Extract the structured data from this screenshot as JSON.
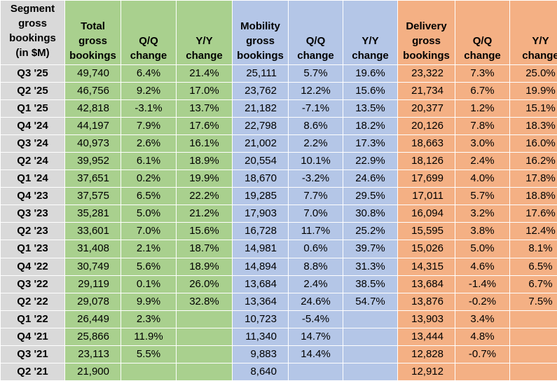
{
  "headers": {
    "segment": [
      "Segment",
      "gross",
      "bookings",
      "(in $M)"
    ],
    "total": [
      "Total",
      "gross",
      "bookings"
    ],
    "total_qq": [
      "Q/Q",
      "change"
    ],
    "total_yy": [
      "Y/Y",
      "change"
    ],
    "mobility": [
      "Mobility",
      "gross",
      "bookings"
    ],
    "mobility_qq": [
      "Q/Q",
      "change"
    ],
    "mobility_yy": [
      "Y/Y",
      "change"
    ],
    "delivery": [
      "Delivery",
      "gross",
      "bookings"
    ],
    "delivery_qq": [
      "Q/Q",
      "change"
    ],
    "delivery_yy": [
      "Y/Y",
      "change"
    ]
  },
  "rows": [
    [
      "Q3 '25",
      "49,740",
      "6.4%",
      "21.4%",
      "25,111",
      "5.7%",
      "19.6%",
      "23,322",
      "7.3%",
      "25.0%"
    ],
    [
      "Q2 '25",
      "46,756",
      "9.2%",
      "17.0%",
      "23,762",
      "12.2%",
      "15.6%",
      "21,734",
      "6.7%",
      "19.9%"
    ],
    [
      "Q1 '25",
      "42,818",
      "-3.1%",
      "13.7%",
      "21,182",
      "-7.1%",
      "13.5%",
      "20,377",
      "1.2%",
      "15.1%"
    ],
    [
      "Q4 '24",
      "44,197",
      "7.9%",
      "17.6%",
      "22,798",
      "8.6%",
      "18.2%",
      "20,126",
      "7.8%",
      "18.3%"
    ],
    [
      "Q3 '24",
      "40,973",
      "2.6%",
      "16.1%",
      "21,002",
      "2.2%",
      "17.3%",
      "18,663",
      "3.0%",
      "16.0%"
    ],
    [
      "Q2 '24",
      "39,952",
      "6.1%",
      "18.9%",
      "20,554",
      "10.1%",
      "22.9%",
      "18,126",
      "2.4%",
      "16.2%"
    ],
    [
      "Q1 '24",
      "37,651",
      "0.2%",
      "19.9%",
      "18,670",
      "-3.2%",
      "24.6%",
      "17,699",
      "4.0%",
      "17.8%"
    ],
    [
      "Q4 '23",
      "37,575",
      "6.5%",
      "22.2%",
      "19,285",
      "7.7%",
      "29.5%",
      "17,011",
      "5.7%",
      "18.8%"
    ],
    [
      "Q3 '23",
      "35,281",
      "5.0%",
      "21.2%",
      "17,903",
      "7.0%",
      "30.8%",
      "16,094",
      "3.2%",
      "17.6%"
    ],
    [
      "Q2 '23",
      "33,601",
      "7.0%",
      "15.6%",
      "16,728",
      "11.7%",
      "25.2%",
      "15,595",
      "3.8%",
      "12.4%"
    ],
    [
      "Q1 '23",
      "31,408",
      "2.1%",
      "18.7%",
      "14,981",
      "0.6%",
      "39.7%",
      "15,026",
      "5.0%",
      "8.1%"
    ],
    [
      "Q4 '22",
      "30,749",
      "5.6%",
      "18.9%",
      "14,894",
      "8.8%",
      "31.3%",
      "14,315",
      "4.6%",
      "6.5%"
    ],
    [
      "Q3 '22",
      "29,119",
      "0.1%",
      "26.0%",
      "13,684",
      "2.4%",
      "38.5%",
      "13,684",
      "-1.4%",
      "6.7%"
    ],
    [
      "Q2 '22",
      "29,078",
      "9.9%",
      "32.8%",
      "13,364",
      "24.6%",
      "54.7%",
      "13,876",
      "-0.2%",
      "7.5%"
    ],
    [
      "Q1 '22",
      "26,449",
      "2.3%",
      "",
      "10,723",
      "-5.4%",
      "",
      "13,903",
      "3.4%",
      ""
    ],
    [
      "Q4 '21",
      "25,866",
      "11.9%",
      "",
      "11,340",
      "14.7%",
      "",
      "13,444",
      "4.8%",
      ""
    ],
    [
      "Q3 '21",
      "23,113",
      "5.5%",
      "",
      "9,883",
      "14.4%",
      "",
      "12,828",
      "-0.7%",
      ""
    ],
    [
      "Q2 '21",
      "21,900",
      "",
      "",
      "8,640",
      "",
      "",
      "12,912",
      "",
      ""
    ]
  ],
  "colors": {
    "label": "#d9d9d9",
    "total": "#a9d08e",
    "mobility": "#b4c6e7",
    "delivery": "#f4b084"
  }
}
